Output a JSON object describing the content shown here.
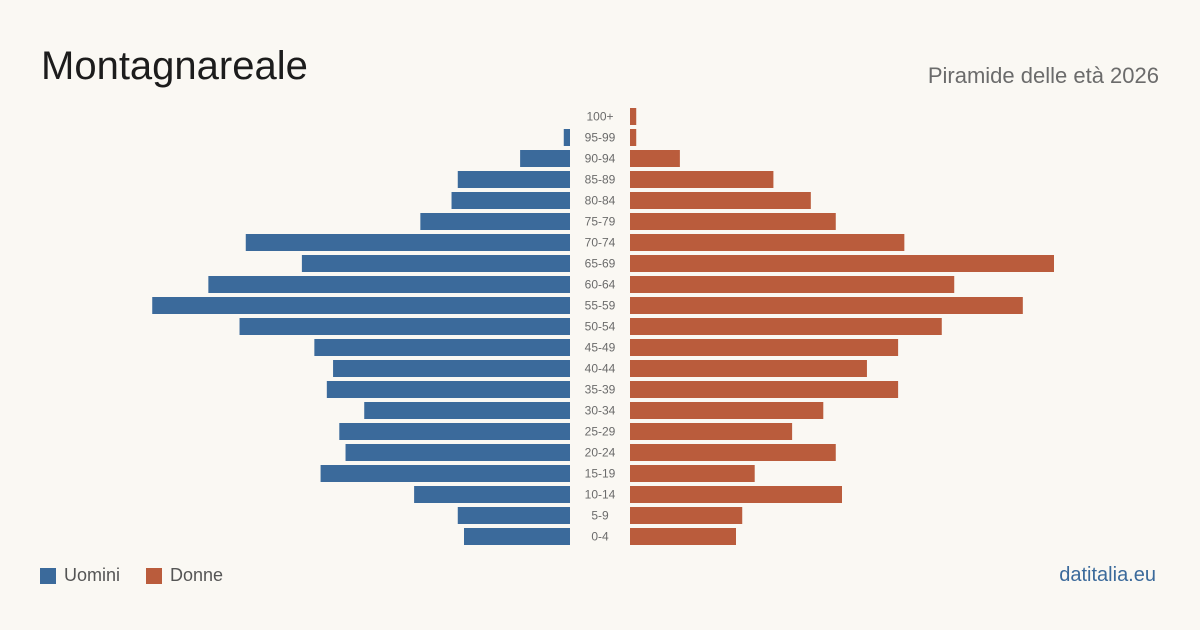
{
  "header": {
    "title": "Montagnareale",
    "subtitle": "Piramide delle età 2026"
  },
  "legend": {
    "men_label": "Uomini",
    "women_label": "Donne"
  },
  "footer": {
    "brand": "datitalia.eu"
  },
  "colors": {
    "men": "#3b6a9b",
    "women": "#ba5c3c"
  },
  "chart_data": {
    "type": "bar",
    "orientation": "horizontal-pyramid",
    "categories": [
      "100+",
      "95-99",
      "90-94",
      "85-89",
      "80-84",
      "75-79",
      "70-74",
      "65-69",
      "60-64",
      "55-59",
      "50-54",
      "45-49",
      "40-44",
      "35-39",
      "30-34",
      "25-29",
      "20-24",
      "15-19",
      "10-14",
      "5-9",
      "0-4"
    ],
    "series": [
      {
        "name": "Uomini",
        "values": [
          0,
          1,
          8,
          18,
          19,
          24,
          52,
          43,
          58,
          67,
          53,
          41,
          38,
          39,
          33,
          37,
          36,
          40,
          25,
          18,
          17
        ]
      },
      {
        "name": "Donne",
        "values": [
          1,
          1,
          8,
          23,
          29,
          33,
          44,
          68,
          52,
          63,
          50,
          43,
          38,
          43,
          31,
          26,
          33,
          20,
          34,
          18,
          17
        ]
      }
    ],
    "xmax": 68
  }
}
